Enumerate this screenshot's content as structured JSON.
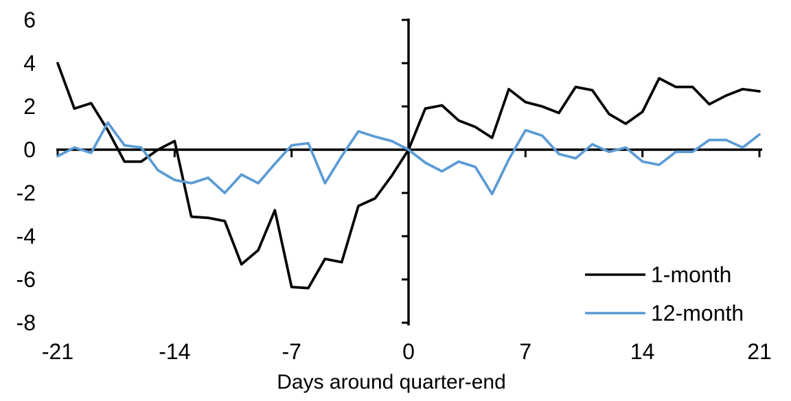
{
  "chart_data": {
    "type": "line",
    "title": "",
    "xlabel": "Days around quarter-end",
    "ylabel": "",
    "xlim": [
      -21,
      21
    ],
    "ylim": [
      -8,
      6
    ],
    "xticks": [
      -21,
      -14,
      -7,
      0,
      7,
      14,
      21
    ],
    "yticks": [
      6,
      4,
      2,
      0,
      -2,
      -4,
      -6,
      -8
    ],
    "grid": false,
    "background": "#FFFFFF",
    "axis_color": "#000000",
    "legend_position": "inside-lower-right",
    "x": [
      -21,
      -20,
      -19,
      -18,
      -17,
      -16,
      -15,
      -14,
      -13,
      -12,
      -11,
      -10,
      -9,
      -8,
      -7,
      -6,
      -5,
      -4,
      -3,
      -2,
      -1,
      0,
      1,
      2,
      3,
      4,
      5,
      6,
      7,
      8,
      9,
      10,
      11,
      12,
      13,
      14,
      15,
      16,
      17,
      18,
      19,
      20,
      21
    ],
    "series": [
      {
        "name": "1-month",
        "color": "#000000",
        "values": [
          4.0,
          1.9,
          2.15,
          0.9,
          -0.55,
          -0.55,
          0.0,
          0.4,
          -3.1,
          -3.15,
          -3.3,
          -5.3,
          -4.65,
          -2.8,
          -6.35,
          -6.4,
          -5.05,
          -5.2,
          -2.6,
          -2.25,
          -1.2,
          0.0,
          1.9,
          2.05,
          1.35,
          1.05,
          0.55,
          2.8,
          2.2,
          2.0,
          1.7,
          2.9,
          2.75,
          1.65,
          1.2,
          1.75,
          3.3,
          2.9,
          2.9,
          2.1,
          2.5,
          2.8,
          2.7
        ]
      },
      {
        "name": "12-month",
        "color": "#5B9BD5",
        "values": [
          -0.3,
          0.1,
          -0.15,
          1.25,
          0.2,
          0.1,
          -0.95,
          -1.4,
          -1.55,
          -1.3,
          -2.0,
          -1.15,
          -1.55,
          -0.65,
          0.2,
          0.3,
          -1.55,
          -0.3,
          0.85,
          0.6,
          0.4,
          0.0,
          -0.6,
          -1.0,
          -0.55,
          -0.8,
          -2.05,
          -0.45,
          0.9,
          0.65,
          -0.2,
          -0.4,
          0.25,
          -0.1,
          0.1,
          -0.55,
          -0.7,
          -0.1,
          -0.1,
          0.45,
          0.45,
          0.1,
          0.7
        ]
      }
    ]
  }
}
